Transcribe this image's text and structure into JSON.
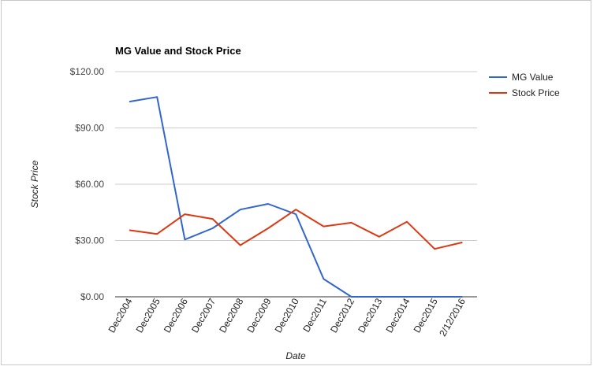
{
  "chart_data": {
    "type": "line",
    "title": "MG Value and Stock Price",
    "xlabel": "Date",
    "ylabel": "Stock Price",
    "categories": [
      "Dec2004",
      "Dec2005",
      "Dec2006",
      "Dec2007",
      "Dec2008",
      "Dec2009",
      "Dec2010",
      "Dec2011",
      "Dec2012",
      "Dec2013",
      "Dec2014",
      "Dec2015",
      "2/12/2016"
    ],
    "ylim": [
      0,
      120
    ],
    "yticks": [
      0,
      30,
      60,
      90,
      120
    ],
    "ytick_labels": [
      "$0.00",
      "$30.00",
      "$60.00",
      "$90.00",
      "$120.00"
    ],
    "grid": true,
    "legend_position": "right",
    "series": [
      {
        "name": "MG Value",
        "color": "#3366cc",
        "values": [
          104,
          106.5,
          30.5,
          36.5,
          46.5,
          49.5,
          44,
          9.5,
          0,
          0,
          0,
          0,
          0
        ]
      },
      {
        "name": "Stock Price",
        "color": "#dc3912",
        "values": [
          35.5,
          33.5,
          44,
          41.5,
          27.5,
          36.5,
          46.5,
          37.5,
          39.5,
          32,
          40,
          25.5,
          29
        ]
      }
    ]
  }
}
